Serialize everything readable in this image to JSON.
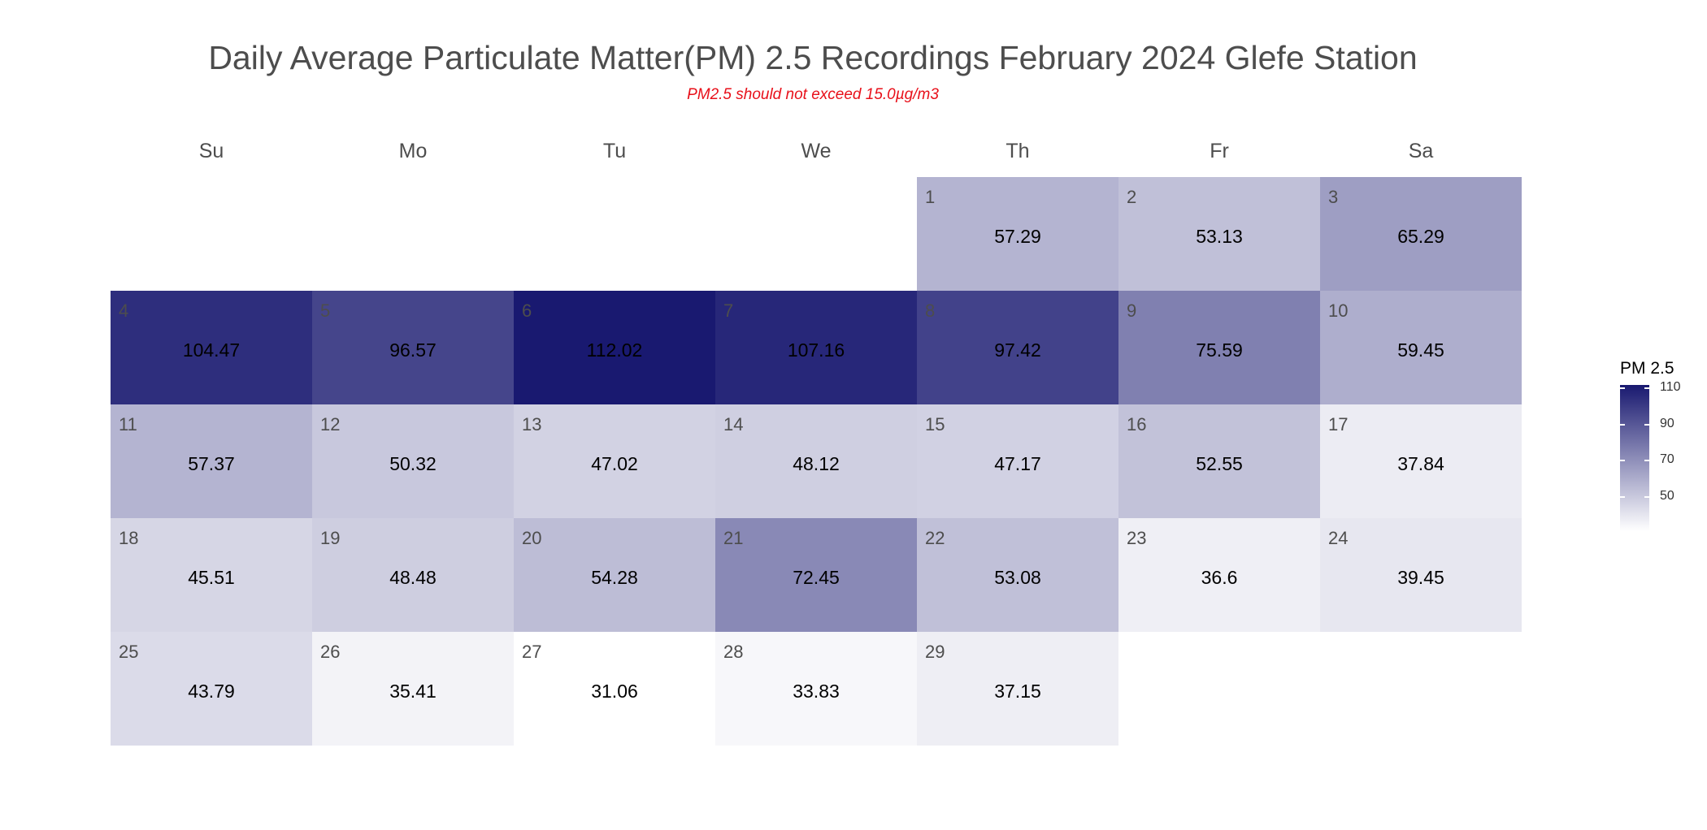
{
  "chart_data": {
    "type": "heatmap",
    "title": "Daily Average Particulate Matter(PM) 2.5 Recordings February 2024 Glefe Station",
    "subtitle": "PM2.5 should not exceed 15.0µg/m3",
    "weekdays": [
      "Su",
      "Mo",
      "Tu",
      "We",
      "Th",
      "Fr",
      "Sa"
    ],
    "first_weekday_index": 4,
    "days": [
      1,
      2,
      3,
      4,
      5,
      6,
      7,
      8,
      9,
      10,
      11,
      12,
      13,
      14,
      15,
      16,
      17,
      18,
      19,
      20,
      21,
      22,
      23,
      24,
      25,
      26,
      27,
      28,
      29
    ],
    "values": [
      57.29,
      53.13,
      65.29,
      104.47,
      96.57,
      112.02,
      107.16,
      97.42,
      75.59,
      59.45,
      57.37,
      50.32,
      47.02,
      48.12,
      47.17,
      52.55,
      37.84,
      45.51,
      48.48,
      54.28,
      72.45,
      53.08,
      36.6,
      39.45,
      43.79,
      35.41,
      31.06,
      33.83,
      37.15
    ],
    "value_labels": [
      "57.29",
      "53.13",
      "65.29",
      "104.47",
      "96.57",
      "112.02",
      "107.16",
      "97.42",
      "75.59",
      "59.45",
      "57.37",
      "50.32",
      "47.02",
      "48.12",
      "47.17",
      "52.55",
      "37.84",
      "45.51",
      "48.48",
      "54.28",
      "72.45",
      "53.08",
      "36.6",
      "39.45",
      "43.79",
      "35.41",
      "31.06",
      "33.83",
      "37.15"
    ],
    "legend": {
      "title": "PM 2.5",
      "placement": "right",
      "range": [
        31.06,
        112.02
      ],
      "ticks": [
        50,
        70,
        90,
        110
      ],
      "tick_labels": [
        "50",
        "70",
        "90",
        "110"
      ],
      "color_low": "#ffffff",
      "color_high": "#191970"
    }
  }
}
